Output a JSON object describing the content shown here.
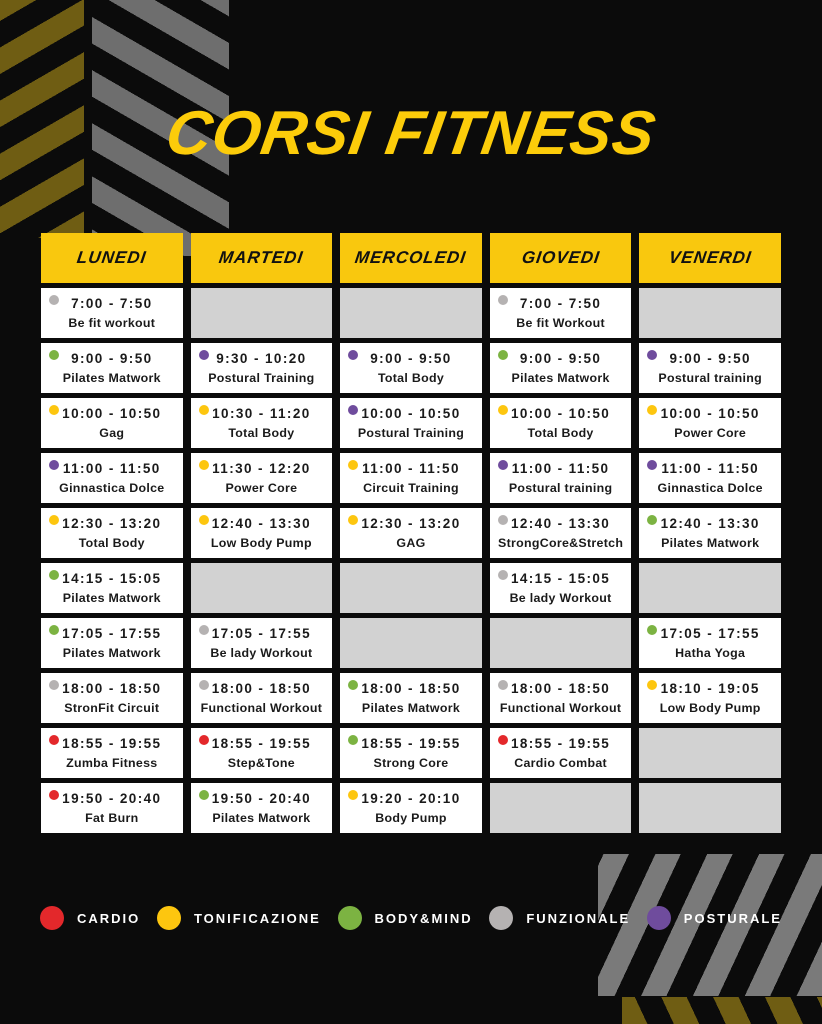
{
  "title": "CORSI FITNESS",
  "colors": {
    "background": "#0B0B0B",
    "header_yellow": "#F9C80E",
    "title_yellow": "#FCCC0A",
    "cell_white": "#FFFFFF",
    "cell_empty_gray": "#D2D2D2",
    "cell_text": "#1A1A1A",
    "stripe_olive": "#6F5D13",
    "stripe_gray_top_left": "#6E6E6E",
    "stripe_gray_bottom_right": "#7A7A7A",
    "categories": {
      "cardio": "#E3282B",
      "tonificazione": "#FDC60F",
      "bodymind": "#7CB342",
      "funzionale": "#B5B2B2",
      "posturale": "#6F4C9D"
    }
  },
  "days": [
    {
      "label": "LUNEDI",
      "slots": [
        {
          "category": "funzionale",
          "time": "7:00 - 7:50",
          "name": "Be fit workout"
        },
        {
          "category": "bodymind",
          "time": "9:00 - 9:50",
          "name": "Pilates Matwork"
        },
        {
          "category": "tonificazione",
          "time": "10:00 - 10:50",
          "name": "Gag"
        },
        {
          "category": "posturale",
          "time": "11:00 - 11:50",
          "name": "Ginnastica Dolce"
        },
        {
          "category": "tonificazione",
          "time": "12:30 - 13:20",
          "name": "Total Body"
        },
        {
          "category": "bodymind",
          "time": "14:15 - 15:05",
          "name": "Pilates Matwork"
        },
        {
          "category": "bodymind",
          "time": "17:05 - 17:55",
          "name": "Pilates Matwork"
        },
        {
          "category": "funzionale",
          "time": "18:00 - 18:50",
          "name": "StronFit Circuit"
        },
        {
          "category": "cardio",
          "time": "18:55 - 19:55",
          "name": "Zumba Fitness"
        },
        {
          "category": "cardio",
          "time": "19:50 - 20:40",
          "name": "Fat Burn"
        }
      ]
    },
    {
      "label": "MARTEDI",
      "slots": [
        null,
        {
          "category": "posturale",
          "time": "9:30 - 10:20",
          "name": "Postural Training"
        },
        {
          "category": "tonificazione",
          "time": "10:30 - 11:20",
          "name": "Total Body"
        },
        {
          "category": "tonificazione",
          "time": "11:30 - 12:20",
          "name": "Power Core"
        },
        {
          "category": "tonificazione",
          "time": "12:40 - 13:30",
          "name": "Low Body Pump"
        },
        null,
        {
          "category": "funzionale",
          "time": "17:05 - 17:55",
          "name": "Be lady Workout"
        },
        {
          "category": "funzionale",
          "time": "18:00 - 18:50",
          "name": "Functional Workout"
        },
        {
          "category": "cardio",
          "time": "18:55 - 19:55",
          "name": "Step&Tone"
        },
        {
          "category": "bodymind",
          "time": "19:50 - 20:40",
          "name": "Pilates Matwork"
        }
      ]
    },
    {
      "label": "MERCOLEDI",
      "slots": [
        null,
        {
          "category": "posturale",
          "time": "9:00 - 9:50",
          "name": "Total Body"
        },
        {
          "category": "posturale",
          "time": "10:00 - 10:50",
          "name": "Postural Training"
        },
        {
          "category": "tonificazione",
          "time": "11:00 - 11:50",
          "name": "Circuit Training"
        },
        {
          "category": "tonificazione",
          "time": "12:30 - 13:20",
          "name": "GAG"
        },
        null,
        null,
        {
          "category": "bodymind",
          "time": "18:00 - 18:50",
          "name": "Pilates Matwork"
        },
        {
          "category": "bodymind",
          "time": "18:55 - 19:55",
          "name": "Strong Core"
        },
        {
          "category": "tonificazione",
          "time": "19:20 - 20:10",
          "name": "Body Pump"
        }
      ]
    },
    {
      "label": "GIOVEDI",
      "slots": [
        {
          "category": "funzionale",
          "time": "7:00 - 7:50",
          "name": "Be fit Workout"
        },
        {
          "category": "bodymind",
          "time": "9:00 - 9:50",
          "name": "Pilates Matwork"
        },
        {
          "category": "tonificazione",
          "time": "10:00 - 10:50",
          "name": "Total Body"
        },
        {
          "category": "posturale",
          "time": "11:00 - 11:50",
          "name": "Postural training"
        },
        {
          "category": "funzionale",
          "time": "12:40 - 13:30",
          "name": "StrongCore&Stretch"
        },
        {
          "category": "funzionale",
          "time": "14:15 - 15:05",
          "name": "Be lady Workout"
        },
        null,
        {
          "category": "funzionale",
          "time": "18:00 - 18:50",
          "name": "Functional Workout"
        },
        {
          "category": "cardio",
          "time": "18:55 - 19:55",
          "name": "Cardio Combat"
        },
        null
      ]
    },
    {
      "label": "VENERDI",
      "slots": [
        null,
        {
          "category": "posturale",
          "time": "9:00 - 9:50",
          "name": "Postural training"
        },
        {
          "category": "tonificazione",
          "time": "10:00 - 10:50",
          "name": "Power Core"
        },
        {
          "category": "posturale",
          "time": "11:00 - 11:50",
          "name": "Ginnastica Dolce"
        },
        {
          "category": "bodymind",
          "time": "12:40 - 13:30",
          "name": "Pilates Matwork"
        },
        null,
        {
          "category": "bodymind",
          "time": "17:05 - 17:55",
          "name": "Hatha Yoga"
        },
        {
          "category": "tonificazione",
          "time": "18:10 - 19:05",
          "name": "Low Body Pump"
        },
        null,
        null
      ]
    }
  ],
  "legend": [
    {
      "category": "cardio",
      "label": "CARDIO"
    },
    {
      "category": "tonificazione",
      "label": "TONIFICAZIONE"
    },
    {
      "category": "bodymind",
      "label": "BODY&MIND"
    },
    {
      "category": "funzionale",
      "label": "FUNZIONALE"
    },
    {
      "category": "posturale",
      "label": "POSTURALE"
    }
  ]
}
